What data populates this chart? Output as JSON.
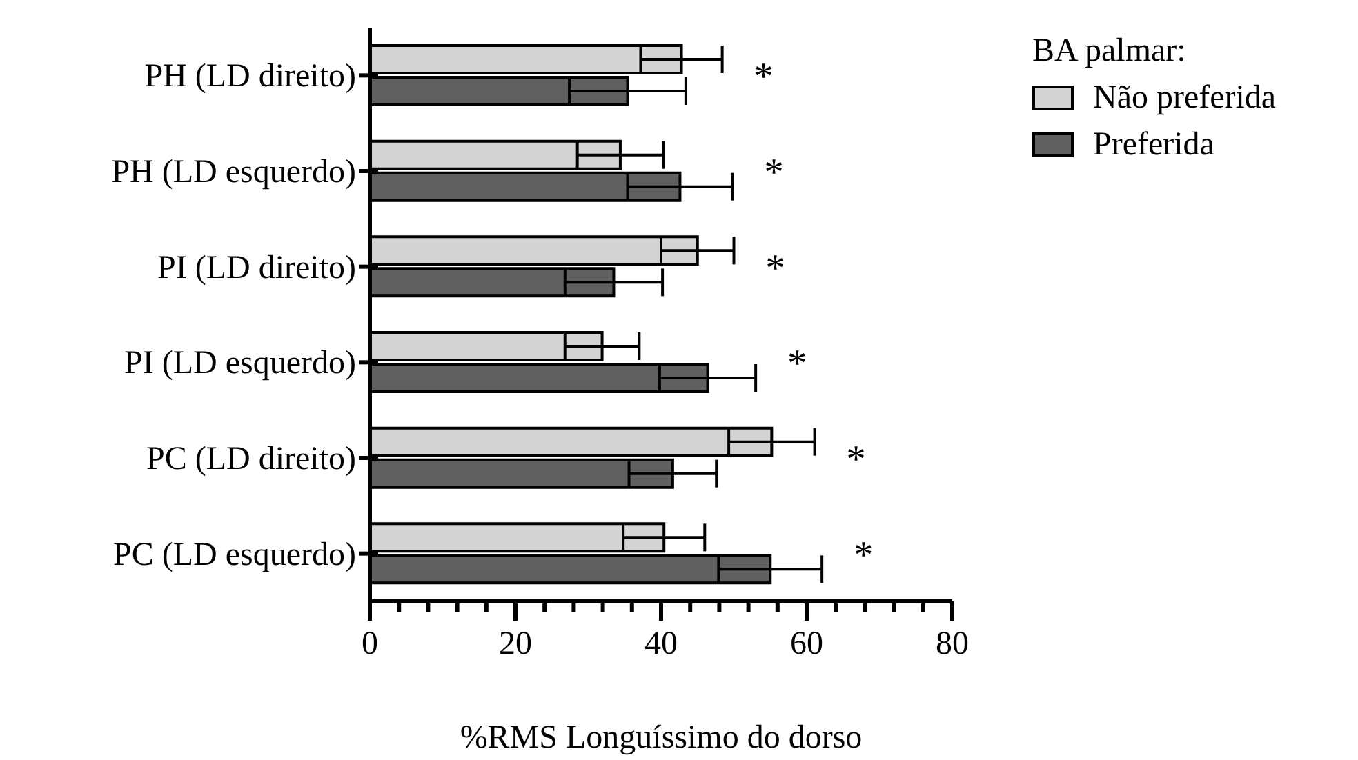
{
  "chart_data": {
    "type": "bar",
    "orientation": "horizontal",
    "xlabel": "%RMS Longuíssimo do dorso",
    "legend_title": "BA palmar:",
    "legend": "top right",
    "categories": [
      "PH (LD direito)",
      "PH (LD esquerdo)",
      "PI (LD direito)",
      "PI (LD esquerdo)",
      "PC (LD direito)",
      "PC (LD esquerdo)"
    ],
    "series": [
      {
        "name": "Não preferida",
        "color": "#d3d3d3",
        "values": [
          42.8,
          34.4,
          45.0,
          31.9,
          55.2,
          40.4
        ],
        "errors": [
          5.6,
          5.9,
          5.0,
          5.1,
          5.9,
          5.6
        ]
      },
      {
        "name": "Preferida",
        "color": "#606060",
        "values": [
          35.4,
          42.6,
          33.5,
          46.4,
          41.6,
          55.0
        ],
        "errors": [
          8.0,
          7.2,
          6.7,
          6.6,
          6.0,
          7.1
        ]
      }
    ],
    "xlim": [
      0,
      80
    ],
    "xticks": [
      0,
      {
        "value": 4,
        "label": null
      },
      {
        "value": 8,
        "label": null
      },
      {
        "value": 12,
        "label": null
      },
      {
        "value": 16,
        "label": null
      },
      20,
      {
        "value": 24,
        "label": null
      },
      {
        "value": 28,
        "label": null
      },
      {
        "value": 32,
        "label": null
      },
      {
        "value": 36,
        "label": null
      },
      40,
      {
        "value": 44,
        "label": null
      },
      {
        "value": 48,
        "label": null
      },
      {
        "value": 52,
        "label": null
      },
      {
        "value": 56,
        "label": null
      },
      60,
      {
        "value": 64,
        "label": null
      },
      {
        "value": 68,
        "label": null
      },
      {
        "value": 72,
        "label": null
      },
      {
        "value": 76,
        "label": null
      },
      80
    ],
    "annotations": [
      "*",
      "*",
      "*",
      "*",
      "*",
      "*"
    ]
  }
}
